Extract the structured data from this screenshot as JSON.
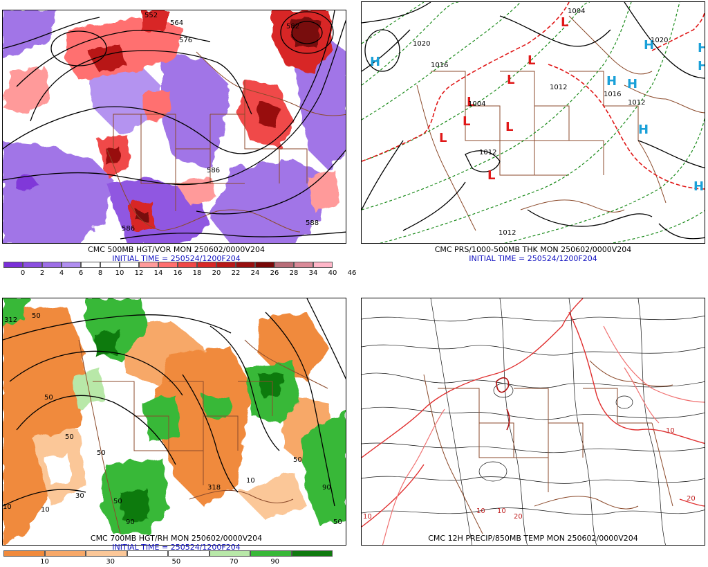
{
  "panels": {
    "top_left": {
      "caption1": "CMC 500MB HGT/VOR MON 250602/0000V204",
      "caption2": "INITIAL TIME = 250524/1200F204",
      "contour_labels": [
        "552",
        "564",
        "576",
        "582",
        "586",
        "586",
        "588"
      ],
      "colorbar": {
        "colors": [
          "#7a2fd8",
          "#8b4fe0",
          "#9d6ee6",
          "#b08ef0",
          "#ffffff",
          "#ffffff",
          "#ffffff",
          "#ff9a9a",
          "#ff6f6f",
          "#f04848",
          "#d82828",
          "#b81818",
          "#981010",
          "#780808",
          "#b86d78",
          "#d98a98",
          "#ffb6c8"
        ],
        "ticks": [
          "0",
          "2",
          "4",
          "6",
          "8",
          "10",
          "12",
          "14",
          "16",
          "18",
          "20",
          "22",
          "24",
          "26",
          "28",
          "34",
          "40",
          "46"
        ]
      }
    },
    "top_right": {
      "caption1": "CMC PRS/1000-500MB THK MON 250602/0000V204",
      "caption2": "INITIAL TIME = 250524/1200F204",
      "contour_labels": [
        "1004",
        "1020",
        "1016",
        "1004",
        "1012",
        "1012",
        "1016",
        "1012",
        "1020",
        "1012"
      ],
      "symbols": {
        "high": "H",
        "low": "L",
        "high_color": "#1aa0d8",
        "low_color": "#e01818"
      }
    },
    "bottom_left": {
      "caption1": "CMC 700MB HGT/RH MON 250602/0000V204",
      "caption2": "INITIAL TIME = 250524/1200F204",
      "contour_labels": [
        "312",
        "50",
        "50",
        "50",
        "50",
        "10",
        "10",
        "30",
        "50",
        "90",
        "318",
        "50",
        "10",
        "90",
        "50"
      ],
      "colorbar": {
        "colors": [
          "#f08a3c",
          "#f7a868",
          "#fbc798",
          "#ffffff",
          "#ffffff",
          "#b8e8a8",
          "#38b838",
          "#107a10"
        ],
        "ticks": [
          "10",
          "30",
          "50",
          "70",
          "90"
        ]
      }
    },
    "bottom_right": {
      "caption1": "CMC 12H PRECIP/850MB TEMP MON 250602/0000V204",
      "caption2": "",
      "contour_labels": [
        "10",
        "10",
        "20",
        "10",
        "20",
        "10"
      ]
    }
  }
}
